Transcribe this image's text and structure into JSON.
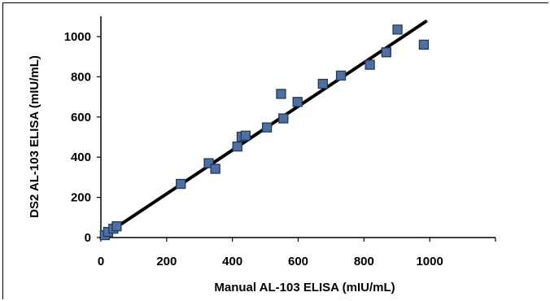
{
  "chart_data": {
    "type": "scatter",
    "title": "",
    "xlabel": "Manual AL-103 ELISA (mIU/mL)",
    "ylabel": "DS2 AL-103 ELISA (mIU/mL)",
    "xlim": [
      0,
      1200
    ],
    "ylim": [
      0,
      1000
    ],
    "x_ticks": [
      0,
      200,
      400,
      600,
      800,
      1000
    ],
    "y_ticks": [
      0,
      200,
      400,
      600,
      800,
      1000
    ],
    "grid": false,
    "legend": "none",
    "series": [
      {
        "marker": "square",
        "color": "#4F6FA0",
        "edge_color": "#1F3A5F",
        "points": [
          [
            12,
            12
          ],
          [
            22,
            28
          ],
          [
            38,
            44
          ],
          [
            48,
            56
          ],
          [
            243,
            267
          ],
          [
            328,
            370
          ],
          [
            348,
            342
          ],
          [
            415,
            453
          ],
          [
            428,
            502
          ],
          [
            440,
            507
          ],
          [
            505,
            548
          ],
          [
            548,
            715
          ],
          [
            555,
            593
          ],
          [
            598,
            675
          ],
          [
            675,
            765
          ],
          [
            730,
            806
          ],
          [
            818,
            860
          ],
          [
            868,
            922
          ],
          [
            902,
            1035
          ],
          [
            982,
            960
          ]
        ]
      }
    ],
    "trendline": {
      "type": "linear",
      "color": "#000000",
      "from": [
        0,
        0
      ],
      "to": [
        988,
        1075
      ]
    }
  }
}
